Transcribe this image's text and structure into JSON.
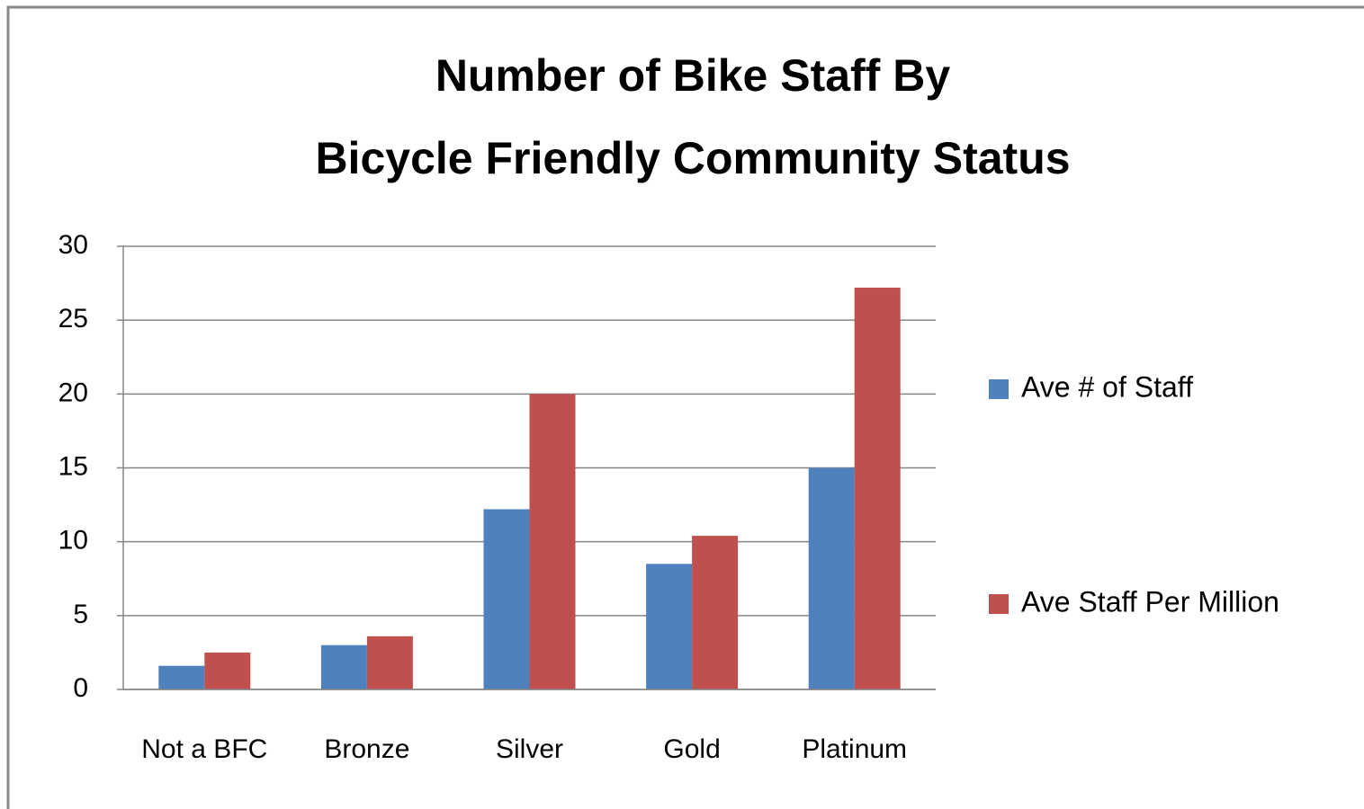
{
  "chart_data": {
    "type": "bar",
    "title": [
      "Number of Bike Staff By",
      "Bicycle Friendly Community Status"
    ],
    "categories": [
      "Not a BFC",
      "Bronze",
      "Silver",
      "Gold",
      "Platinum"
    ],
    "series": [
      {
        "name": "Ave # of Staff",
        "color": "#4f81bd",
        "values": [
          1.6,
          3.0,
          12.2,
          8.5,
          15.0
        ]
      },
      {
        "name": "Ave Staff Per Million",
        "color": "#c0504d",
        "values": [
          2.5,
          3.6,
          20.0,
          10.4,
          27.2
        ]
      }
    ],
    "ylim": [
      0,
      30
    ],
    "yticks": [
      0,
      5,
      10,
      15,
      20,
      25,
      30
    ],
    "grid": true,
    "legend": "right"
  }
}
